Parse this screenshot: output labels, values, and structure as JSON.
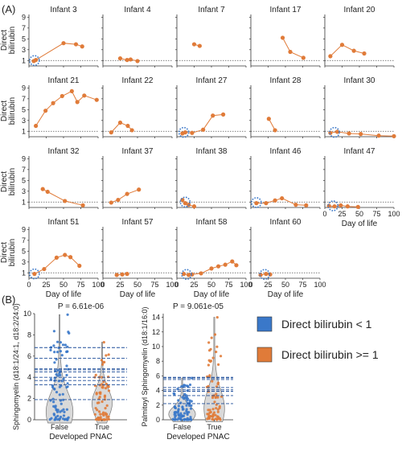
{
  "figure": {
    "panel_a_label": "(A)",
    "panel_b_label": "(B)"
  },
  "colors": {
    "orange": "#E07B39",
    "blue": "#3A78C9",
    "dark_blue": "#1F4E9A",
    "axis": "#333333",
    "violin_fill": "#d9d9d9"
  },
  "chart_data": [
    {
      "type": "scatter",
      "panel": "A",
      "layout": "small-multiples",
      "xlabel": "Day of life",
      "ylabel_lines": [
        "Direct",
        "bilirubin"
      ],
      "xlim": [
        0,
        100
      ],
      "ylim": [
        0,
        9.5
      ],
      "x_ticks": [
        0,
        25,
        50,
        75,
        100
      ],
      "y_ticks": [
        1,
        3,
        5,
        7,
        9
      ],
      "reference_line_y": 1,
      "panels": [
        {
          "title": "Infant 3",
          "points": [
            [
              7,
              0.9
            ],
            [
              10,
              1.1
            ],
            [
              50,
              4.2
            ],
            [
              68,
              4.0
            ],
            [
              77,
              3.6
            ]
          ],
          "circle_at": [
            8,
            1
          ]
        },
        {
          "title": "Infant 4",
          "points": [
            [
              25,
              1.4
            ],
            [
              35,
              1.1
            ],
            [
              40,
              1.2
            ],
            [
              50,
              0.9
            ]
          ]
        },
        {
          "title": "Infant 7",
          "points": [
            [
              25,
              4.0
            ],
            [
              33,
              3.7
            ]
          ]
        },
        {
          "title": "Infant 17",
          "points": [
            [
              46,
              5.2
            ],
            [
              57,
              2.6
            ],
            [
              76,
              1.5
            ]
          ]
        },
        {
          "title": "Infant 20",
          "points": [
            [
              8,
              1.8
            ],
            [
              25,
              3.9
            ],
            [
              42,
              2.8
            ],
            [
              57,
              2.3
            ]
          ]
        },
        {
          "title": "Infant 21",
          "points": [
            [
              10,
              2.0
            ],
            [
              24,
              4.8
            ],
            [
              35,
              6.2
            ],
            [
              48,
              7.5
            ],
            [
              62,
              8.4
            ],
            [
              70,
              6.4
            ],
            [
              80,
              7.6
            ],
            [
              98,
              6.8
            ]
          ]
        },
        {
          "title": "Infant 22",
          "points": [
            [
              12,
              0.8
            ],
            [
              25,
              2.6
            ],
            [
              36,
              2.0
            ],
            [
              42,
              1.2
            ]
          ]
        },
        {
          "title": "Infant 27",
          "points": [
            [
              8,
              0.6
            ],
            [
              12,
              0.8
            ],
            [
              22,
              0.7
            ],
            [
              38,
              1.3
            ],
            [
              52,
              3.9
            ],
            [
              67,
              4.1
            ]
          ],
          "circle_at": [
            10,
            0.8
          ]
        },
        {
          "title": "Infant 28",
          "points": [
            [
              26,
              3.3
            ],
            [
              35,
              1.2
            ]
          ]
        },
        {
          "title": "Infant 30",
          "points": [
            [
              8,
              0.7
            ],
            [
              18,
              0.9
            ],
            [
              35,
              0.6
            ],
            [
              52,
              0.5
            ],
            [
              78,
              0.2
            ],
            [
              100,
              0.1
            ]
          ],
          "circle_at": [
            14,
            0.8
          ]
        },
        {
          "title": "Infant 32",
          "points": [
            [
              20,
              3.4
            ],
            [
              27,
              2.9
            ],
            [
              52,
              1.2
            ],
            [
              78,
              0.4
            ]
          ]
        },
        {
          "title": "Infant 37",
          "points": [
            [
              12,
              0.9
            ],
            [
              22,
              1.4
            ],
            [
              35,
              2.5
            ],
            [
              52,
              3.3
            ]
          ]
        },
        {
          "title": "Infant 38",
          "points": [
            [
              8,
              1.4
            ],
            [
              12,
              0.8
            ],
            [
              17,
              0.5
            ],
            [
              25,
              0.2
            ]
          ],
          "circle_at": [
            12,
            1
          ]
        },
        {
          "title": "Infant 46",
          "points": [
            [
              8,
              0.8
            ],
            [
              22,
              0.8
            ],
            [
              35,
              1.3
            ],
            [
              45,
              1.7
            ],
            [
              65,
              0.5
            ],
            [
              80,
              0.4
            ]
          ],
          "circle_at": [
            8,
            0.9
          ]
        },
        {
          "title": "Infant 47",
          "points": [
            [
              6,
              0.3
            ],
            [
              14,
              0.2
            ],
            [
              23,
              0.4
            ],
            [
              33,
              0.2
            ],
            [
              48,
              0.1
            ]
          ],
          "circle_at": [
            12,
            0.3
          ]
        },
        {
          "title": "Infant 51",
          "points": [
            [
              8,
              0.8
            ],
            [
              22,
              1.7
            ],
            [
              40,
              3.8
            ],
            [
              52,
              4.3
            ],
            [
              60,
              3.9
            ],
            [
              73,
              2.3
            ]
          ],
          "circle_at": [
            8,
            0.8
          ]
        },
        {
          "title": "Infant 57",
          "points": [
            [
              20,
              0.6
            ],
            [
              28,
              0.7
            ],
            [
              35,
              0.8
            ]
          ]
        },
        {
          "title": "Infant 58",
          "points": [
            [
              10,
              0.8
            ],
            [
              17,
              0.6
            ],
            [
              22,
              0.7
            ],
            [
              35,
              0.9
            ],
            [
              50,
              1.8
            ],
            [
              60,
              2.2
            ],
            [
              70,
              2.5
            ],
            [
              80,
              3.1
            ],
            [
              86,
              2.4
            ]
          ],
          "circle_at": [
            14,
            0.7
          ]
        },
        {
          "title": "Infant 60",
          "points": [
            [
              14,
              0.6
            ],
            [
              22,
              0.8
            ],
            [
              28,
              0.7
            ]
          ],
          "circle_at": [
            20,
            0.7
          ]
        }
      ]
    },
    {
      "type": "violin",
      "panel": "B-left",
      "title": "P = 6.61e-06",
      "xlabel": "Developed PNAC",
      "ylabel": "Sphingomyelin (d18:1/24:1, d18:2/24:0)",
      "categories": [
        "False",
        "True"
      ],
      "ylim": [
        0,
        10
      ],
      "y_ticks": [
        0,
        2,
        4,
        6,
        8,
        10
      ],
      "threshold_lines": [
        1.9,
        3.3,
        3.7,
        4.0,
        4.5,
        4.7,
        4.8,
        5.8,
        6.8
      ],
      "max_values": [
        9.9,
        7.3
      ]
    },
    {
      "type": "violin",
      "panel": "B-right",
      "title": "P = 9.061e-05",
      "xlabel": "Developed PNAC",
      "ylabel": "Palmitoyl Sphingomyelin (d18:1/16:0)",
      "categories": [
        "False",
        "True"
      ],
      "ylim": [
        0,
        14.5
      ],
      "y_ticks": [
        0,
        2,
        4,
        6,
        8,
        10,
        12,
        14
      ],
      "threshold_lines": [
        2.2,
        3.3,
        3.9,
        4.1,
        4.4,
        5.5,
        5.7,
        5.8
      ],
      "max_values": [
        5.7,
        14.0
      ]
    }
  ],
  "legend": {
    "items": [
      {
        "label": "Direct bilirubin < 1",
        "color": "#3A78C9"
      },
      {
        "label": "Direct bilirubin >= 1",
        "color": "#E07B39"
      }
    ]
  }
}
